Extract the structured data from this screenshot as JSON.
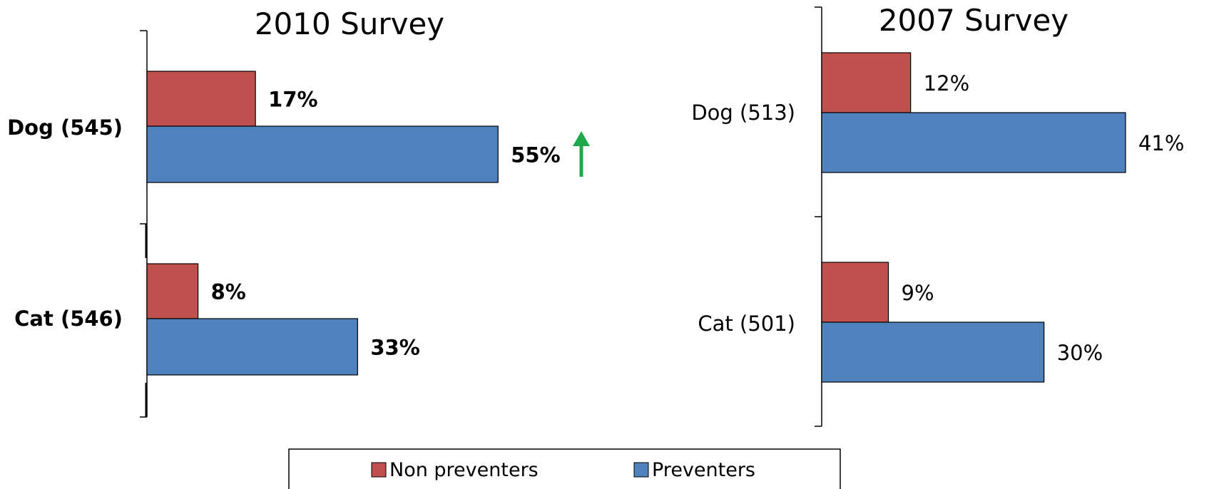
{
  "colors": {
    "non_preventers": "#c0504d",
    "preventers": "#4f81bd",
    "arrow": "#1fa84a"
  },
  "chart_data": [
    {
      "type": "bar",
      "orientation": "horizontal",
      "title": "2010 Survey",
      "categories": [
        "Dog (545)",
        "Cat (546)"
      ],
      "series": [
        {
          "name": "Non preventers",
          "values": [
            17,
            8
          ],
          "labels": [
            "17%",
            "8%"
          ]
        },
        {
          "name": "Preventers",
          "values": [
            55,
            33
          ],
          "labels": [
            "55%",
            "33%"
          ]
        }
      ],
      "xlim": [
        0,
        100
      ],
      "grid": false,
      "annotations": [
        {
          "type": "up-arrow",
          "target": "Dog (545) Preventers"
        }
      ]
    },
    {
      "type": "bar",
      "orientation": "horizontal",
      "title": "2007 Survey",
      "categories": [
        "Dog (513)",
        "Cat (501)"
      ],
      "series": [
        {
          "name": "Non preventers",
          "values": [
            12,
            9
          ],
          "labels": [
            "12%",
            "9%"
          ]
        },
        {
          "name": "Preventers",
          "values": [
            41,
            30
          ],
          "labels": [
            "41%",
            "30%"
          ]
        }
      ],
      "xlim": [
        0,
        100
      ],
      "grid": false
    }
  ],
  "legend": {
    "placement": "bottom",
    "items": [
      "Non preventers",
      "Preventers"
    ]
  }
}
